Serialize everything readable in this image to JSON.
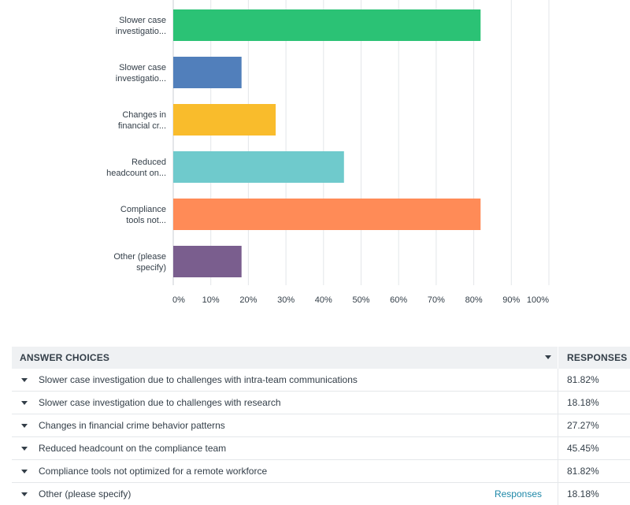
{
  "chart_data": {
    "type": "bar",
    "orientation": "horizontal",
    "categories": [
      [
        "Slower case",
        "investigatio..."
      ],
      [
        "Slower case",
        "investigatio..."
      ],
      [
        "Changes in",
        "financial cr..."
      ],
      [
        "Reduced",
        "headcount on..."
      ],
      [
        "Compliance",
        "tools not..."
      ],
      [
        "Other (please",
        "specify)"
      ]
    ],
    "values": [
      81.82,
      18.18,
      27.27,
      45.45,
      81.82,
      18.18
    ],
    "colors": [
      "#2bc275",
      "#517fbb",
      "#f9bc2c",
      "#6fcacc",
      "#ff8b57",
      "#7a5e8e"
    ],
    "xlim": [
      0,
      100
    ],
    "x_ticks": [
      "0%",
      "10%",
      "20%",
      "30%",
      "40%",
      "50%",
      "60%",
      "70%",
      "80%",
      "90%",
      "100%"
    ],
    "grid": true
  },
  "table": {
    "header_choice": "ANSWER CHOICES",
    "header_responses": "RESPONSES",
    "rows": [
      {
        "choice": "Slower case investigation due to challenges with intra-team communications",
        "response": "81.82%",
        "link": ""
      },
      {
        "choice": "Slower case investigation due to challenges with research",
        "response": "18.18%",
        "link": ""
      },
      {
        "choice": "Changes in financial crime behavior patterns",
        "response": "27.27%",
        "link": ""
      },
      {
        "choice": "Reduced headcount on the compliance team",
        "response": "45.45%",
        "link": ""
      },
      {
        "choice": "Compliance tools not optimized for a remote workforce",
        "response": "81.82%",
        "link": ""
      },
      {
        "choice": "Other (please specify)",
        "response": "18.18%",
        "link": "Responses"
      }
    ]
  }
}
